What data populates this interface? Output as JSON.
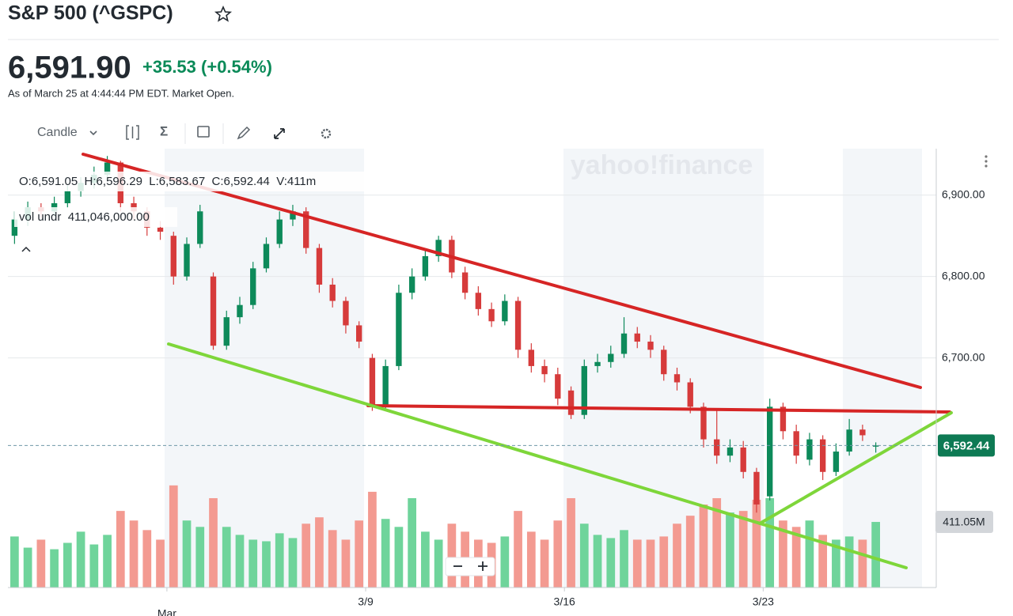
{
  "header": {
    "title": "S&P 500 (^GSPC)",
    "price": "6,591.90",
    "change": "+35.53 (+0.54%)",
    "as_of": "As of March 25 at 4:44:44 PM EDT. Market Open."
  },
  "toolbar": {
    "chart_type": "Candle",
    "indicators": "Σ"
  },
  "chart_data": {
    "type": "candlestick",
    "watermark": "yahoo!finance",
    "readout": "O:6,591.05  H:6,596.29  L:6,583.67  C:6,592.44  V:411m",
    "volume_readout": "vol undr  411,046,000.00",
    "categories": [
      null,
      null,
      null,
      null,
      null,
      null,
      null,
      null,
      null,
      null,
      null,
      null,
      "Mar",
      null,
      null,
      null,
      null,
      null,
      null,
      null,
      null,
      null,
      null,
      null,
      null,
      null,
      null,
      "3/9",
      null,
      null,
      null,
      null,
      null,
      null,
      null,
      null,
      null,
      null,
      null,
      null,
      null,
      null,
      "3/16",
      null,
      null,
      null,
      null,
      null,
      null,
      null,
      null,
      null,
      null,
      null,
      null,
      null,
      null,
      "3/23",
      null,
      null,
      null,
      null,
      null,
      null,
      null,
      null
    ],
    "open": [
      6850,
      6870,
      6885,
      6880,
      6890,
      6905,
      6915,
      6925,
      6940,
      6890,
      6880,
      6860,
      6850,
      6800,
      6840,
      6800,
      6715,
      6750,
      6765,
      6810,
      6840,
      6870,
      6880,
      6835,
      6790,
      6770,
      6740,
      6700,
      6640,
      6690,
      6780,
      6800,
      6825,
      6845,
      6805,
      6780,
      6760,
      6745,
      6770,
      6710,
      6690,
      6680,
      6660,
      6630,
      6690,
      6695,
      6705,
      6730,
      6720,
      6710,
      6680,
      6670,
      6640,
      6600,
      6580,
      6590,
      6560,
      6530,
      6640,
      6610,
      6575,
      6600,
      6560,
      6585,
      6612,
      6591.05
    ],
    "high": [
      6880,
      6892,
      6890,
      6898,
      6912,
      6922,
      6935,
      6948,
      6942,
      6898,
      6885,
      6868,
      6855,
      6848,
      6888,
      6805,
      6758,
      6775,
      6818,
      6848,
      6880,
      6888,
      6885,
      6840,
      6798,
      6775,
      6745,
      6705,
      6698,
      6790,
      6810,
      6832,
      6850,
      6850,
      6812,
      6788,
      6768,
      6778,
      6775,
      6718,
      6698,
      6688,
      6665,
      6698,
      6705,
      6715,
      6750,
      6738,
      6728,
      6715,
      6688,
      6675,
      6645,
      6635,
      6600,
      6598,
      6565,
      6650,
      6645,
      6618,
      6608,
      6605,
      6595,
      6625,
      6618,
      6596.29
    ],
    "low": [
      6840,
      6862,
      6872,
      6874,
      6884,
      6898,
      6908,
      6918,
      6880,
      6870,
      6850,
      6845,
      6790,
      6795,
      6835,
      6710,
      6710,
      6742,
      6760,
      6805,
      6835,
      6862,
      6828,
      6780,
      6762,
      6730,
      6712,
      6635,
      6635,
      6685,
      6772,
      6795,
      6818,
      6798,
      6772,
      6752,
      6738,
      6740,
      6700,
      6682,
      6670,
      6642,
      6625,
      6625,
      6682,
      6688,
      6700,
      6712,
      6700,
      6672,
      6660,
      6632,
      6590,
      6570,
      6572,
      6552,
      6510,
      6525,
      6600,
      6570,
      6568,
      6550,
      6555,
      6580,
      6598,
      6583.67
    ],
    "close": [
      6870,
      6885,
      6880,
      6890,
      6905,
      6915,
      6925,
      6940,
      6890,
      6880,
      6860,
      6855,
      6800,
      6840,
      6880,
      6715,
      6750,
      6765,
      6810,
      6840,
      6870,
      6880,
      6835,
      6790,
      6770,
      6740,
      6720,
      6640,
      6690,
      6780,
      6800,
      6825,
      6845,
      6805,
      6780,
      6760,
      6745,
      6770,
      6710,
      6690,
      6680,
      6650,
      6630,
      6690,
      6695,
      6705,
      6730,
      6720,
      6710,
      6680,
      6670,
      6640,
      6600,
      6580,
      6590,
      6560,
      6520,
      6640,
      6610,
      6580,
      6600,
      6560,
      6585,
      6612,
      6605,
      6592.44
    ],
    "volume": [
      320,
      250,
      300,
      240,
      280,
      350,
      270,
      330,
      480,
      420,
      360,
      300,
      640,
      420,
      380,
      560,
      380,
      330,
      300,
      290,
      340,
      310,
      400,
      440,
      360,
      300,
      420,
      600,
      430,
      380,
      560,
      350,
      300,
      400,
      350,
      300,
      280,
      320,
      480,
      350,
      300,
      420,
      560,
      400,
      330,
      310,
      360,
      300,
      300,
      320,
      400,
      450,
      520,
      560,
      470,
      480,
      550,
      560,
      420,
      380,
      420,
      330,
      300,
      320,
      300,
      411.05
    ],
    "up_color": "#0d8a5a",
    "down_color": "#d63b3b",
    "up_volume_color": "#6fd49b",
    "down_volume_color": "#f39a91",
    "ylim": [
      6418,
      6957
    ],
    "yticks": [
      {
        "value": 6700,
        "label": "6,700.00"
      },
      {
        "value": 6800,
        "label": "6,800.00"
      },
      {
        "value": 6900,
        "label": "6,900.00"
      }
    ],
    "y2lim": [
      0,
      2750
    ],
    "grid": true,
    "price_marker": {
      "value": 6592.44,
      "label": "6,592.44"
    },
    "volume_marker": {
      "value": 411.05,
      "label": "411.05M"
    }
  }
}
